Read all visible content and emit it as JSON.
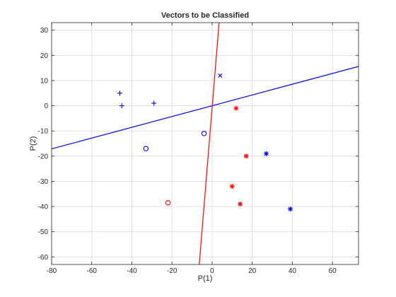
{
  "chart_data": {
    "type": "scatter",
    "title": "Vectors to be Classified",
    "xlabel": "P(1)",
    "ylabel": "P(2)",
    "xlim": [
      -80,
      73
    ],
    "ylim": [
      -63,
      33
    ],
    "xticks": [
      -80,
      -60,
      -40,
      -20,
      0,
      20,
      40,
      60
    ],
    "yticks": [
      30,
      20,
      10,
      0,
      -10,
      -20,
      -30,
      -40,
      -50,
      -60
    ],
    "grid": true,
    "colors": {
      "blue": "#0000ff",
      "red": "#ff0000",
      "grid": "#dcdcdc",
      "axis": "#262626"
    },
    "series": [
      {
        "marker": "plus",
        "color": "#0000ff",
        "points": [
          [
            -46,
            5
          ],
          [
            -45,
            0
          ],
          [
            -29,
            1
          ]
        ]
      },
      {
        "marker": "x",
        "color": "#0000ff",
        "points": [
          [
            4,
            12
          ]
        ]
      },
      {
        "marker": "circle",
        "color": "#0000ff",
        "points": [
          [
            -33,
            -17
          ],
          [
            -4,
            -11
          ]
        ]
      },
      {
        "marker": "star",
        "color": "#0000ff",
        "points": [
          [
            27,
            -19
          ],
          [
            39,
            -41
          ]
        ]
      },
      {
        "marker": "star",
        "color": "#ff0000",
        "points": [
          [
            12,
            -1
          ],
          [
            17,
            -20
          ],
          [
            10,
            -32
          ],
          [
            14,
            -39
          ]
        ]
      },
      {
        "marker": "circle",
        "color": "#ff0000",
        "points": [
          [
            -22,
            -38.5
          ]
        ]
      }
    ],
    "lines": [
      {
        "color": "#0000ff",
        "points": [
          [
            -80,
            -17.1
          ],
          [
            73,
            15.6
          ]
        ]
      },
      {
        "color": "#ff0000",
        "points": [
          [
            -6.4,
            -63
          ],
          [
            3.5,
            33
          ]
        ]
      }
    ]
  }
}
